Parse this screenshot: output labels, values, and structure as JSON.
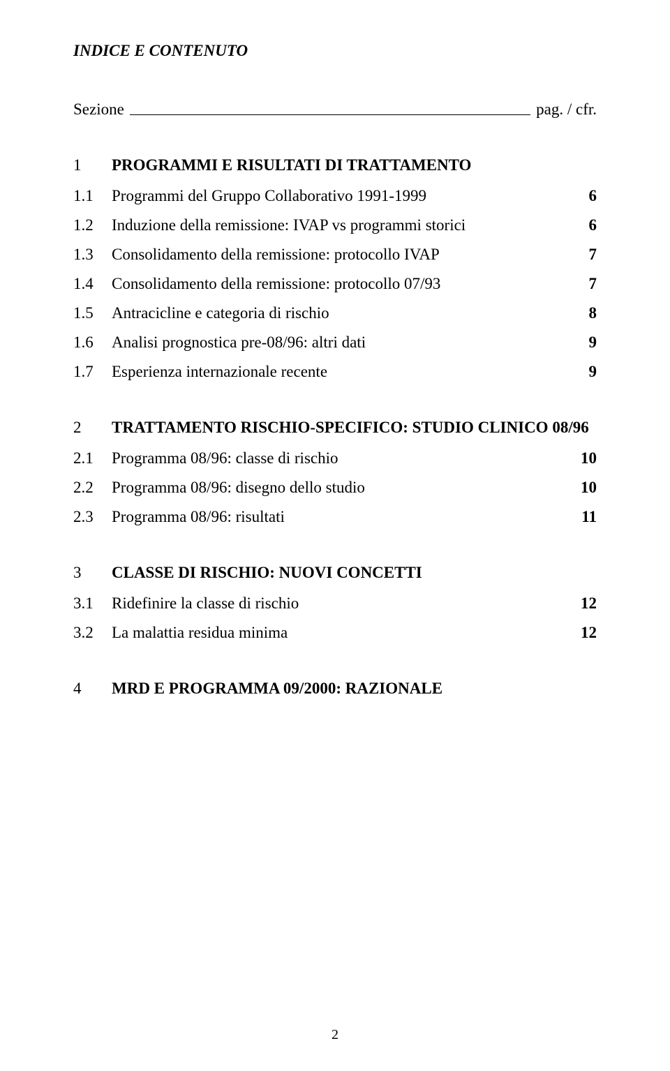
{
  "title": "INDICE E CONTENUTO",
  "header": {
    "left": "Sezione",
    "right": "pag. / cfr."
  },
  "sections": [
    {
      "num": "1",
      "title": "PROGRAMMI E RISULTATI DI TRATTAMENTO",
      "items": [
        {
          "num": "1.1",
          "text": "Programmi del Gruppo Collaborativo 1991-1999",
          "page": "6"
        },
        {
          "num": "1.2",
          "text": "Induzione della remissione: IVAP vs programmi storici",
          "page": "6"
        },
        {
          "num": "1.3",
          "text": "Consolidamento della remissione: protocollo IVAP",
          "page": "7"
        },
        {
          "num": "1.4",
          "text": "Consolidamento della remissione: protocollo 07/93",
          "page": "7"
        },
        {
          "num": "1.5",
          "text": "Antracicline e categoria di rischio",
          "page": "8"
        },
        {
          "num": "1.6",
          "text": "Analisi prognostica pre-08/96: altri dati",
          "page": "9"
        },
        {
          "num": "1.7",
          "text": "Esperienza internazionale recente",
          "page": "9"
        }
      ]
    },
    {
      "num": "2",
      "title": "TRATTAMENTO RISCHIO-SPECIFICO: STUDIO CLINICO 08/96",
      "items": [
        {
          "num": "2.1",
          "text": "Programma 08/96: classe di rischio",
          "page": "10"
        },
        {
          "num": "2.2",
          "text": "Programma 08/96: disegno dello studio",
          "page": "10"
        },
        {
          "num": "2.3",
          "text": "Programma 08/96: risultati",
          "page": "11"
        }
      ]
    },
    {
      "num": "3",
      "title": "CLASSE DI RISCHIO: NUOVI CONCETTI",
      "items": [
        {
          "num": "3.1",
          "text": "Ridefinire la classe di rischio",
          "page": "12"
        },
        {
          "num": "3.2",
          "text": "La malattia residua minima",
          "page": "12"
        }
      ]
    },
    {
      "num": "4",
      "title": "MRD E PROGRAMMA 09/2000: RAZIONALE",
      "items": []
    }
  ],
  "pageNumber": "2",
  "style": {
    "background_color": "#ffffff",
    "text_color": "#000000",
    "font_family": "Times New Roman",
    "title_fontsize": 23,
    "body_fontsize": 23,
    "page_number_fontsize": 20
  }
}
